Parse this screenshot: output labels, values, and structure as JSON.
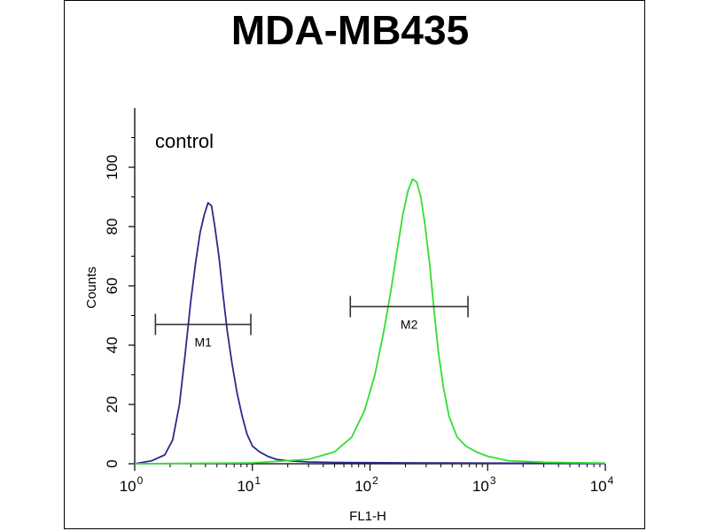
{
  "chart_data": {
    "type": "line",
    "title": "MDA-MB435",
    "xlabel": "FL1-H",
    "ylabel": "Counts",
    "x_scale": "log",
    "xlim": [
      1,
      10000
    ],
    "ylim": [
      0,
      120
    ],
    "x_ticks": [
      {
        "value": 1,
        "base": "10",
        "exp": "0"
      },
      {
        "value": 10,
        "base": "10",
        "exp": "1"
      },
      {
        "value": 100,
        "base": "10",
        "exp": "2"
      },
      {
        "value": 1000,
        "base": "10",
        "exp": "3"
      },
      {
        "value": 10000,
        "base": "10",
        "exp": "4"
      }
    ],
    "y_ticks": [
      0,
      20,
      40,
      60,
      80,
      100
    ],
    "annotation": "control",
    "series": [
      {
        "color": "#2a2a8c",
        "x": [
          1,
          1.4,
          1.8,
          2.1,
          2.4,
          2.7,
          3.0,
          3.3,
          3.6,
          3.9,
          4.2,
          4.5,
          4.8,
          5.2,
          5.6,
          6.1,
          6.7,
          7.4,
          8.2,
          9.0,
          10,
          11.5,
          13.5,
          16,
          20,
          30,
          60,
          200,
          1000,
          10000
        ],
        "y": [
          0,
          1,
          3,
          8,
          20,
          38,
          55,
          68,
          78,
          84,
          88,
          87,
          80,
          70,
          58,
          45,
          34,
          24,
          16,
          10,
          6,
          4,
          2.5,
          1.5,
          1,
          0.6,
          0.4,
          0.3,
          0.2,
          0.1
        ]
      },
      {
        "color": "#33dd33",
        "x": [
          1,
          10,
          30,
          50,
          70,
          90,
          110,
          130,
          150,
          170,
          190,
          210,
          230,
          250,
          270,
          290,
          320,
          350,
          380,
          420,
          470,
          550,
          650,
          800,
          1000,
          1500,
          3000,
          10000
        ],
        "y": [
          0,
          0.3,
          1.5,
          4,
          9,
          18,
          30,
          44,
          58,
          72,
          84,
          92,
          96,
          95,
          90,
          82,
          68,
          52,
          38,
          26,
          16,
          9,
          6,
          4,
          2.5,
          1,
          0.5,
          0.2
        ]
      }
    ],
    "markers": [
      {
        "label": "M1",
        "x_start": 1.5,
        "x_end": 9.7,
        "y": 47
      },
      {
        "label": "M2",
        "x_start": 68,
        "x_end": 680,
        "y": 53
      }
    ]
  }
}
